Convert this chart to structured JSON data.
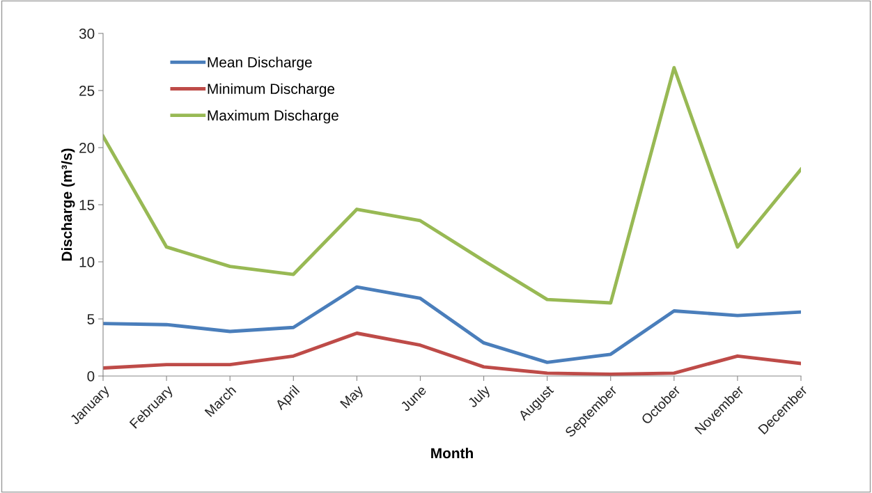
{
  "chart_data": {
    "type": "line",
    "xlabel": "Month",
    "ylabel": "Discharge (m³/s)",
    "categories": [
      "January",
      "February",
      "March",
      "April",
      "May",
      "June",
      "July",
      "August",
      "September",
      "October",
      "November",
      "December"
    ],
    "series": [
      {
        "name": "Mean Discharge",
        "color": "#4a7ebb",
        "values": [
          4.6,
          4.5,
          3.9,
          4.25,
          7.8,
          6.8,
          2.9,
          1.2,
          1.9,
          5.7,
          5.3,
          5.6
        ]
      },
      {
        "name": "Minimum Discharge",
        "color": "#be4b48",
        "values": [
          0.7,
          1.0,
          1.0,
          1.75,
          3.75,
          2.7,
          0.8,
          0.25,
          0.15,
          0.25,
          1.75,
          1.1
        ]
      },
      {
        "name": "Maximum Discharge",
        "color": "#98b954",
        "values": [
          21.0,
          11.3,
          9.6,
          8.9,
          14.6,
          13.6,
          10.1,
          6.7,
          6.4,
          27.0,
          11.3,
          18.1
        ]
      }
    ],
    "ylim": [
      0,
      30
    ],
    "yticks": [
      0,
      5,
      10,
      15,
      20,
      25,
      30
    ],
    "grid": false,
    "legend": "top left",
    "marker": "none",
    "line_style": "solid"
  }
}
